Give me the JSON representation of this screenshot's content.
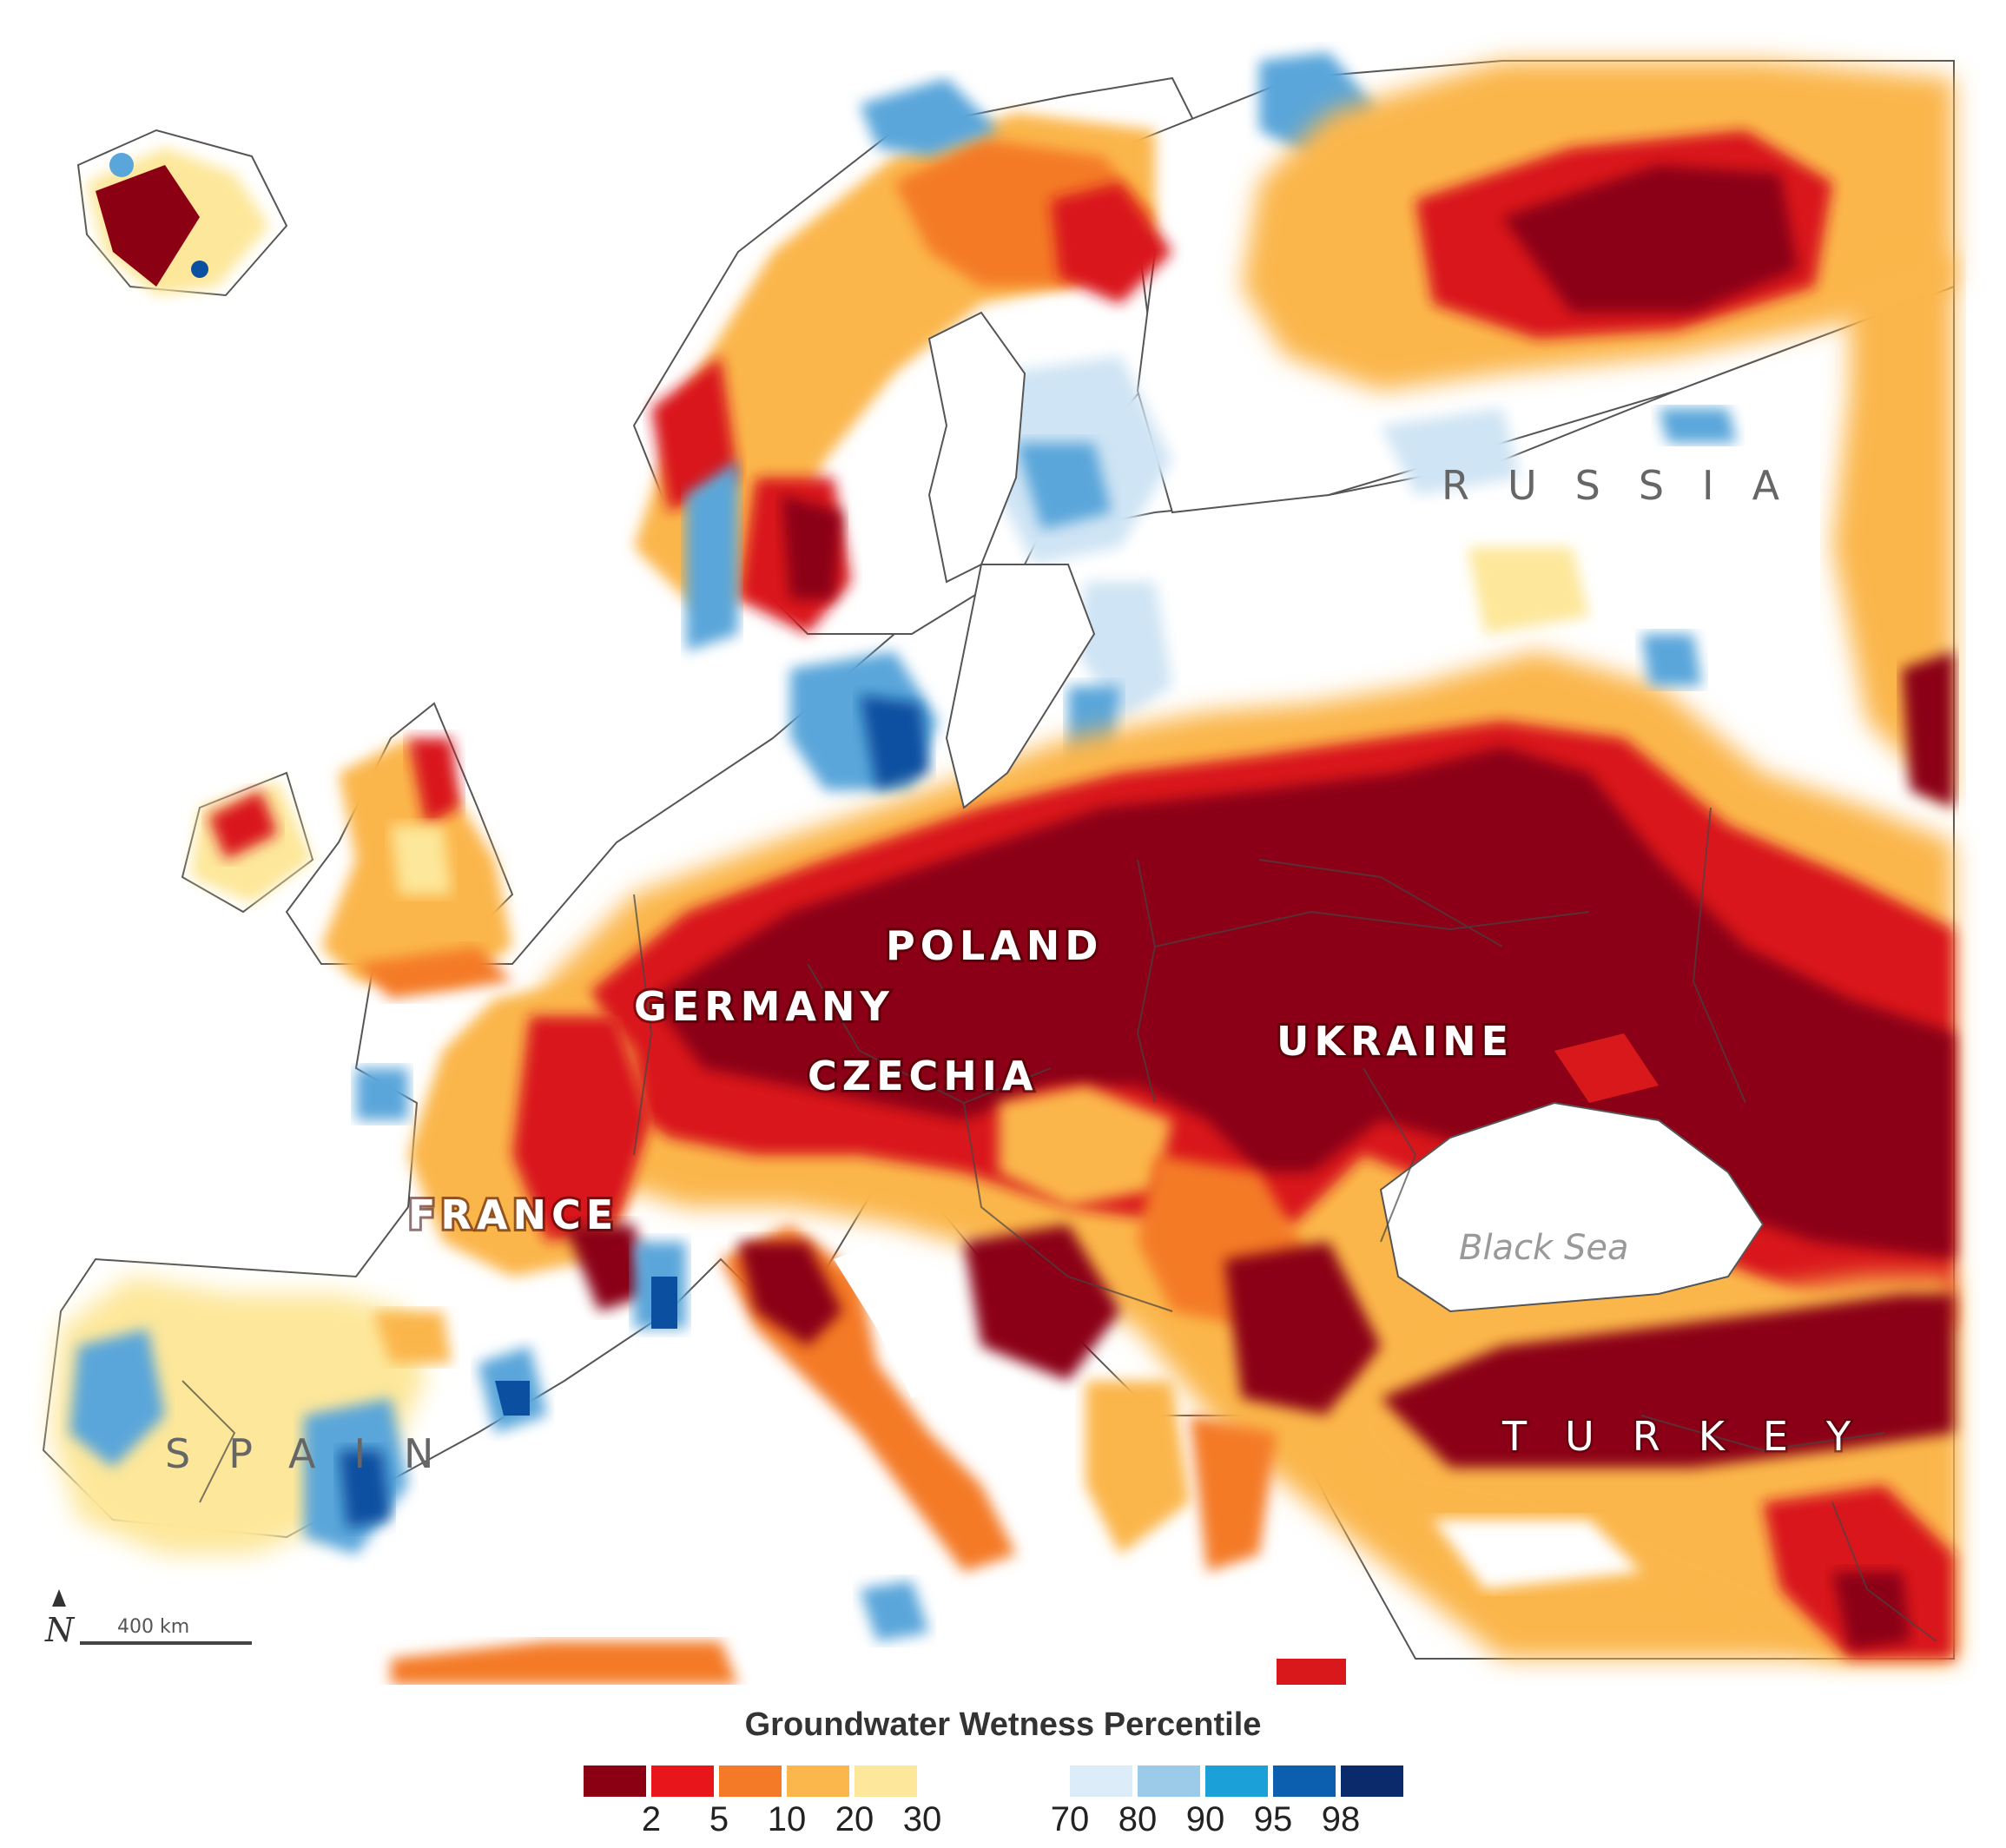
{
  "map": {
    "country_labels": [
      "POLAND",
      "GERMANY",
      "UKRAINE",
      "CZECHIA",
      "FRANCE"
    ],
    "wide_labels": [
      "RUSSIA",
      "SPAIN",
      "TURKEY"
    ],
    "sea_label": "Black Sea",
    "north_label": "N",
    "scale_label": "400 km"
  },
  "legend": {
    "title": "Groundwater Wetness Percentile",
    "dry": [
      {
        "color": "#8b0012",
        "label": ""
      },
      {
        "color": "#e8151b",
        "label": "2"
      },
      {
        "color": "#f47a28",
        "label": "5"
      },
      {
        "color": "#fbb64c",
        "label": "10"
      },
      {
        "color": "#fde79a",
        "label": "20"
      },
      {
        "color": "",
        "label": "30"
      }
    ],
    "wet": [
      {
        "color": "#dcecf8",
        "label": "70"
      },
      {
        "color": "#9ccbea",
        "label": "80"
      },
      {
        "color": "#1ba0d8",
        "label": "90"
      },
      {
        "color": "#0b5fae",
        "label": "95"
      },
      {
        "color": "#0a2a6c",
        "label": "98"
      }
    ]
  },
  "colors": {
    "extreme_dry": "#8b0012",
    "very_dry": "#d9181c",
    "dry": "#f47a28",
    "moderate_dry": "#fbb64c",
    "slight_dry": "#fde79a",
    "slight_wet": "#cfe4f4",
    "wet": "#5aa6da",
    "very_wet": "#0b4fa0"
  }
}
